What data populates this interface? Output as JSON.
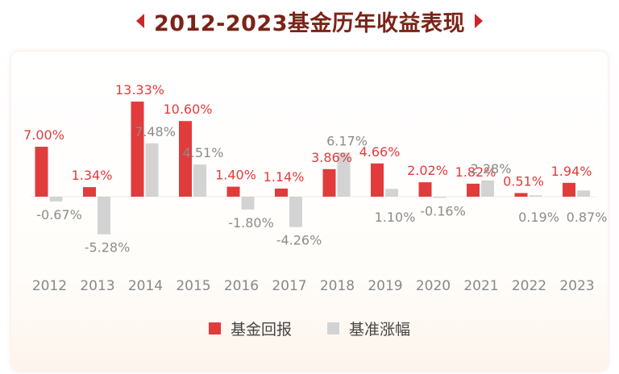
{
  "header": {
    "title": "2012-2023基金历年收益表现"
  },
  "colors": {
    "fund": "#e23b3c",
    "benchmark": "#d3d3d3",
    "fund_label": "#e23b3c",
    "benchmark_label": "#8c8c8c",
    "title": "#7a2418",
    "accent": "#c8262b"
  },
  "chart_data": {
    "type": "bar",
    "categories": [
      "2012",
      "2013",
      "2014",
      "2015",
      "2016",
      "2017",
      "2018",
      "2019",
      "2020",
      "2021",
      "2022",
      "2023"
    ],
    "series": [
      {
        "name": "基金回报",
        "values": [
          7.0,
          1.34,
          13.33,
          10.6,
          1.4,
          1.14,
          3.86,
          4.66,
          2.02,
          1.82,
          0.51,
          1.94
        ],
        "labels": [
          "7.00%",
          "1.34%",
          "13.33%",
          "10.60%",
          "1.40%",
          "1.14%",
          "3.86%",
          "4.66%",
          "2.02%",
          "1.82%",
          "0.51%",
          "1.94%"
        ]
      },
      {
        "name": "基准涨幅",
        "values": [
          -0.67,
          -5.28,
          7.48,
          4.51,
          -1.8,
          -4.26,
          6.17,
          1.1,
          -0.16,
          2.28,
          0.19,
          0.87
        ],
        "labels": [
          "-0.67%",
          "-5.28%",
          "7.48%",
          "4.51%",
          "-1.80%",
          "-4.26%",
          "6.17%",
          "1.10%",
          "-0.16%",
          "2.28%",
          "0.19%",
          "0.87%"
        ]
      }
    ],
    "title": "2012-2023基金历年收益表现",
    "legend": "bottom-center",
    "grid": false
  }
}
